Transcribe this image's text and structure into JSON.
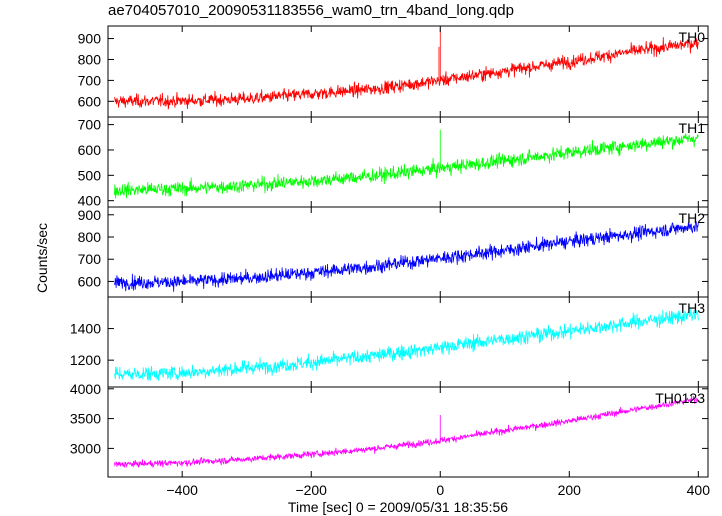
{
  "title": "ae704057010_20090531183556_wam0_trn_4band_long.qdp",
  "chart_data": {
    "type": "line",
    "xlabel": "Time [sec] 0 = 2009/05/31 18:35:56",
    "ylabel": "Counts/sec",
    "xlim": [
      -515,
      415
    ],
    "xticks": [
      -400,
      -200,
      0,
      200,
      400
    ],
    "xtick_labels": [
      "−400",
      "−200",
      "0",
      "200",
      "400"
    ],
    "panels": [
      {
        "name": "TH0",
        "color": "#ff0000",
        "ylim": [
          525,
          960
        ],
        "yticks": [
          600,
          700,
          800,
          900
        ],
        "ytick_labels": [
          "600",
          "700",
          "800",
          "900"
        ],
        "trend": [
          [
            -505,
            600
          ],
          [
            -400,
            602
          ],
          [
            -300,
            612
          ],
          [
            -200,
            635
          ],
          [
            -100,
            660
          ],
          [
            0,
            700
          ],
          [
            100,
            745
          ],
          [
            200,
            790
          ],
          [
            300,
            840
          ],
          [
            400,
            880
          ]
        ],
        "noise": 28,
        "spikes": [
          [
            0,
            945
          ],
          [
            -2,
            860
          ]
        ]
      },
      {
        "name": "TH1",
        "color": "#00ff00",
        "ylim": [
          375,
          730
        ],
        "yticks": [
          400,
          500,
          600,
          700
        ],
        "ytick_labels": [
          "400",
          "500",
          "600",
          "700"
        ],
        "trend": [
          [
            -505,
            440
          ],
          [
            -400,
            448
          ],
          [
            -300,
            460
          ],
          [
            -200,
            478
          ],
          [
            -100,
            498
          ],
          [
            0,
            528
          ],
          [
            100,
            558
          ],
          [
            200,
            590
          ],
          [
            300,
            620
          ],
          [
            400,
            648
          ]
        ],
        "noise": 25,
        "spikes": [
          [
            0,
            680
          ]
        ]
      },
      {
        "name": "TH2",
        "color": "#0000ff",
        "ylim": [
          530,
          935
        ],
        "yticks": [
          600,
          700,
          800,
          900
        ],
        "ytick_labels": [
          "600",
          "700",
          "800",
          "900"
        ],
        "trend": [
          [
            -505,
            595
          ],
          [
            -400,
            598
          ],
          [
            -300,
            615
          ],
          [
            -200,
            640
          ],
          [
            -100,
            668
          ],
          [
            0,
            705
          ],
          [
            100,
            740
          ],
          [
            200,
            780
          ],
          [
            300,
            815
          ],
          [
            400,
            850
          ]
        ],
        "noise": 28,
        "spikes": []
      },
      {
        "name": "TH3",
        "color": "#00ffff",
        "ylim": [
          1030,
          1600
        ],
        "yticks": [
          1200,
          1400
        ],
        "ytick_labels": [
          "1200",
          "1400"
        ],
        "trend": [
          [
            -505,
            1110
          ],
          [
            -400,
            1120
          ],
          [
            -300,
            1150
          ],
          [
            -200,
            1185
          ],
          [
            -100,
            1230
          ],
          [
            0,
            1280
          ],
          [
            100,
            1335
          ],
          [
            200,
            1385
          ],
          [
            300,
            1440
          ],
          [
            400,
            1490
          ]
        ],
        "noise": 42,
        "spikes": []
      },
      {
        "name": "TH0123",
        "color": "#ff00ff",
        "ylim": [
          2520,
          4030
        ],
        "yticks": [
          3000,
          3500,
          4000
        ],
        "ytick_labels": [
          "3000",
          "3500",
          "4000"
        ],
        "trend": [
          [
            -505,
            2730
          ],
          [
            -400,
            2760
          ],
          [
            -300,
            2820
          ],
          [
            -200,
            2900
          ],
          [
            -100,
            3000
          ],
          [
            0,
            3130
          ],
          [
            100,
            3300
          ],
          [
            200,
            3460
          ],
          [
            300,
            3650
          ],
          [
            400,
            3830
          ]
        ],
        "noise": 50,
        "spikes": [
          [
            0,
            3560
          ]
        ]
      }
    ]
  }
}
